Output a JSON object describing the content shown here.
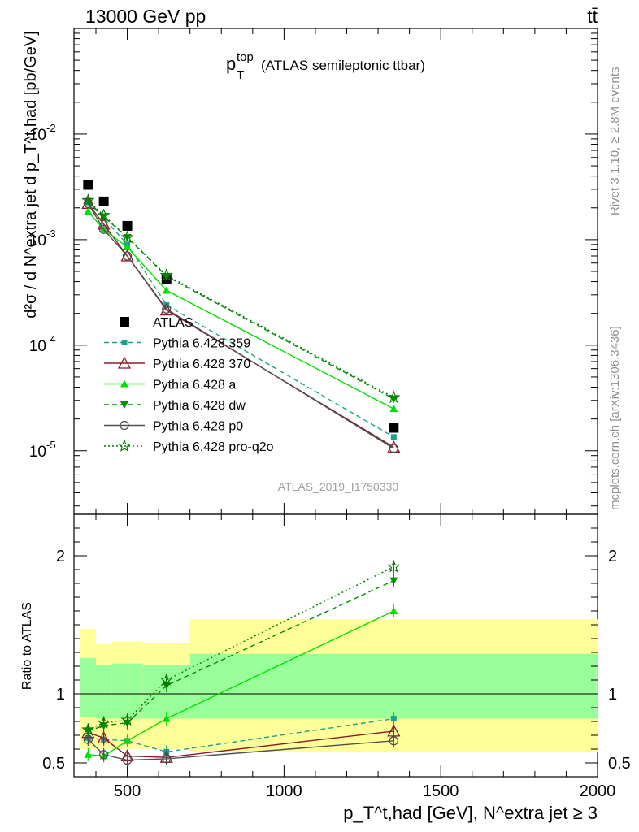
{
  "header": {
    "left": "13000 GeV pp",
    "right": "tt̄"
  },
  "side_labels": {
    "rivet": "Rivet 3.1.10, ≥ 2.8M events",
    "mcplots": "mcplots.cern.ch [arXiv:1306.3436]"
  },
  "main_plot": {
    "title_main": "p",
    "title_sup": "top",
    "title_sub": "T",
    "title_rest": "(ATLAS semileptonic ttbar)",
    "analysis_id": "ATLAS_2019_I1750330",
    "ylabel": "d²σ / d N^extra jet d p_T^t,had [pb/GeV]"
  },
  "ratio_plot": {
    "ylabel": "Ratio to ATLAS"
  },
  "xaxis": {
    "label": "p_T^t,had [GeV], N^extra jet ≥ 3"
  },
  "colors": {
    "ATLAS": "#000000",
    "Pythia 6.428 359": "#1ba18a",
    "Pythia 6.428 370": "#8b1a2b",
    "Pythia 6.428 a": "#00e000",
    "Pythia 6.428 dw": "#009000",
    "Pythia 6.428 p0": "#505050",
    "Pythia 6.428 pro-q2o": "#007a00",
    "band_inner": "#99ff99",
    "band_outer": "#ffff99"
  },
  "chart_data": [
    {
      "type": "line",
      "panel": "main",
      "ylog": true,
      "xlim": [
        330,
        2000
      ],
      "ylim": [
        2.5e-06,
        0.1
      ],
      "x_ticks": [
        500,
        1000,
        1500,
        2000
      ],
      "y_tick_labels": [
        "10^-5",
        "10^-4",
        "10^-3",
        "10^-2"
      ],
      "x": [
        375,
        425,
        500,
        625,
        1350
      ],
      "series": [
        {
          "name": "ATLAS",
          "style": "data",
          "values": [
            0.0033,
            0.0023,
            0.00135,
            0.00042,
            1.65e-05
          ]
        },
        {
          "name": "Pythia 6.428 359",
          "style": "dashed",
          "marker": "square",
          "values": [
            0.00225,
            0.0016,
            0.0009,
            0.00024,
            1.35e-05
          ]
        },
        {
          "name": "Pythia 6.428 370",
          "style": "solid",
          "marker": "triangle-open",
          "values": [
            0.0022,
            0.0014,
            0.0007,
            0.000215,
            1.08e-05
          ]
        },
        {
          "name": "Pythia 6.428 a",
          "style": "solid",
          "marker": "triangle",
          "values": [
            0.00185,
            0.00125,
            0.00085,
            0.00033,
            2.5e-05
          ]
        },
        {
          "name": "Pythia 6.428 dw",
          "style": "dashed",
          "marker": "triangle-down",
          "values": [
            0.0023,
            0.00165,
            0.00105,
            0.00045,
            3.1e-05
          ]
        },
        {
          "name": "Pythia 6.428 p0",
          "style": "solid",
          "marker": "circle-open",
          "values": [
            0.0022,
            0.00125,
            0.0007,
            0.00022,
            1.05e-05
          ]
        },
        {
          "name": "Pythia 6.428 pro-q2o",
          "style": "dotted",
          "marker": "star",
          "values": [
            0.00235,
            0.0017,
            0.00105,
            0.00046,
            3.2e-05
          ]
        }
      ]
    },
    {
      "type": "line",
      "panel": "ratio",
      "xlim": [
        330,
        2000
      ],
      "ylim": [
        0.4,
        2.3
      ],
      "y_ticks": [
        0.5,
        1,
        2
      ],
      "x": [
        375,
        425,
        500,
        625,
        1350
      ],
      "bands": {
        "edges": [
          350,
          400,
          450,
          550,
          700,
          2000
        ],
        "inner_lo": [
          0.83,
          0.82,
          0.82,
          0.82,
          0.82
        ],
        "inner_hi": [
          1.26,
          1.21,
          1.22,
          1.21,
          1.29
        ],
        "outer_lo": [
          0.6,
          0.6,
          0.6,
          0.6,
          0.58
        ],
        "outer_hi": [
          1.47,
          1.36,
          1.38,
          1.37,
          1.54
        ]
      },
      "series": [
        {
          "name": "Pythia 6.428 359",
          "values": [
            0.68,
            0.67,
            0.66,
            0.58,
            0.82
          ]
        },
        {
          "name": "Pythia 6.428 370",
          "values": [
            0.72,
            0.68,
            0.55,
            0.54,
            0.73
          ]
        },
        {
          "name": "Pythia 6.428 a",
          "values": [
            0.56,
            0.55,
            0.66,
            0.82,
            1.6
          ]
        },
        {
          "name": "Pythia 6.428 dw",
          "values": [
            0.73,
            0.77,
            0.79,
            1.06,
            1.82
          ]
        },
        {
          "name": "Pythia 6.428 p0",
          "values": [
            0.67,
            0.56,
            0.52,
            0.53,
            0.66
          ]
        },
        {
          "name": "Pythia 6.428 pro-q2o",
          "values": [
            0.74,
            0.79,
            0.81,
            1.1,
            1.92
          ]
        }
      ]
    }
  ]
}
